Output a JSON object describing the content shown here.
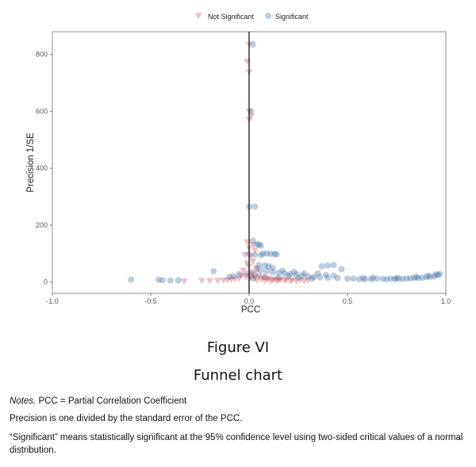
{
  "chart_data": {
    "type": "scatter",
    "xlabel": "PCC",
    "ylabel": "Precision 1/SE",
    "xlim": [
      -1.0,
      1.0
    ],
    "ylim": [
      -40,
      880
    ],
    "x_ticks": [
      "-1.0",
      "-0.5",
      "0.0",
      "0.5",
      "1.0"
    ],
    "x_tick_values": [
      -1.0,
      -0.5,
      0.0,
      0.5,
      1.0
    ],
    "y_ticks": [
      "0",
      "200",
      "400",
      "600",
      "800"
    ],
    "y_tick_values": [
      0,
      200,
      400,
      600,
      800
    ],
    "reference_line_x": 0.0,
    "grid": false,
    "legend_position": "top",
    "series": [
      {
        "name": "Not Significant",
        "marker": "triangle-down",
        "color": "#c0505e",
        "points": [
          [
            0.0,
            835
          ],
          [
            -0.01,
            775
          ],
          [
            0.0,
            738
          ],
          [
            0.0,
            600
          ],
          [
            0.01,
            583
          ],
          [
            0.0,
            570
          ],
          [
            -0.01,
            140
          ],
          [
            0.02,
            130
          ],
          [
            0.0,
            118
          ],
          [
            0.03,
            110
          ],
          [
            -0.02,
            95
          ],
          [
            0.01,
            90
          ],
          [
            0.02,
            72
          ],
          [
            -0.01,
            65
          ],
          [
            0.0,
            55
          ],
          [
            0.04,
            48
          ],
          [
            -0.03,
            40
          ],
          [
            0.01,
            35
          ],
          [
            0.02,
            28
          ],
          [
            0.0,
            22
          ],
          [
            0.05,
            20
          ],
          [
            -0.02,
            18
          ],
          [
            0.07,
            15
          ],
          [
            0.1,
            12
          ],
          [
            0.13,
            10
          ],
          [
            0.16,
            8
          ],
          [
            0.19,
            7
          ],
          [
            0.22,
            6
          ],
          [
            0.26,
            6
          ],
          [
            0.3,
            5
          ],
          [
            0.03,
            14
          ],
          [
            0.06,
            10
          ],
          [
            0.09,
            8
          ],
          [
            0.12,
            6
          ],
          [
            0.15,
            5
          ],
          [
            0.18,
            4
          ],
          [
            -0.05,
            12
          ],
          [
            -0.07,
            10
          ],
          [
            -0.09,
            8
          ],
          [
            -0.11,
            6
          ],
          [
            -0.13,
            5
          ],
          [
            -0.16,
            4
          ],
          [
            -0.2,
            3
          ],
          [
            -0.24,
            4
          ],
          [
            -0.33,
            2
          ],
          [
            0.04,
            6
          ],
          [
            0.08,
            4
          ],
          [
            0.11,
            3
          ],
          [
            0.14,
            3
          ],
          [
            0.21,
            3
          ],
          [
            0.24,
            2
          ],
          [
            0.28,
            3
          ],
          [
            -0.04,
            22
          ],
          [
            0.0,
            10
          ]
        ]
      },
      {
        "name": "Significant",
        "marker": "circle",
        "color": "#2f63a0",
        "points": [
          [
            0.02,
            835
          ],
          [
            0.01,
            600
          ],
          [
            0.0,
            265
          ],
          [
            0.03,
            265
          ],
          [
            0.02,
            145
          ],
          [
            0.04,
            132
          ],
          [
            0.05,
            132
          ],
          [
            0.06,
            128
          ],
          [
            0.07,
            100
          ],
          [
            0.09,
            100
          ],
          [
            0.11,
            99
          ],
          [
            0.13,
            98
          ],
          [
            0.14,
            97
          ],
          [
            0.0,
            98
          ],
          [
            0.03,
            96
          ],
          [
            0.06,
            94
          ],
          [
            0.05,
            60
          ],
          [
            0.08,
            58
          ],
          [
            0.1,
            55
          ],
          [
            0.12,
            50
          ],
          [
            0.04,
            45
          ],
          [
            0.06,
            40
          ],
          [
            0.09,
            38
          ],
          [
            0.12,
            35
          ],
          [
            0.15,
            32
          ],
          [
            0.18,
            30
          ],
          [
            0.21,
            28
          ],
          [
            0.24,
            26
          ],
          [
            0.27,
            22
          ],
          [
            0.3,
            20
          ],
          [
            0.33,
            18
          ],
          [
            0.36,
            16
          ],
          [
            0.4,
            15
          ],
          [
            0.45,
            14
          ],
          [
            0.5,
            12
          ],
          [
            0.53,
            12
          ],
          [
            0.56,
            10
          ],
          [
            0.59,
            10
          ],
          [
            0.62,
            10
          ],
          [
            0.65,
            12
          ],
          [
            0.68,
            11
          ],
          [
            0.7,
            10
          ],
          [
            0.72,
            12
          ],
          [
            0.74,
            10
          ],
          [
            0.76,
            12
          ],
          [
            0.78,
            11
          ],
          [
            0.8,
            12
          ],
          [
            0.82,
            13
          ],
          [
            0.84,
            14
          ],
          [
            0.86,
            14
          ],
          [
            0.88,
            15
          ],
          [
            0.9,
            17
          ],
          [
            0.92,
            18
          ],
          [
            0.94,
            20
          ],
          [
            0.96,
            24
          ],
          [
            0.97,
            28
          ],
          [
            0.37,
            55
          ],
          [
            0.4,
            58
          ],
          [
            0.43,
            60
          ],
          [
            0.47,
            45
          ],
          [
            0.35,
            30
          ],
          [
            0.39,
            25
          ],
          [
            0.43,
            22
          ],
          [
            0.32,
            12
          ],
          [
            0.2,
            22
          ],
          [
            0.25,
            15
          ],
          [
            0.15,
            15
          ],
          [
            0.08,
            18
          ],
          [
            0.03,
            25
          ],
          [
            0.01,
            20
          ],
          [
            0.02,
            12
          ],
          [
            -0.01,
            30
          ],
          [
            -0.05,
            28
          ],
          [
            -0.08,
            20
          ],
          [
            -0.1,
            18
          ],
          [
            -0.18,
            38
          ],
          [
            -0.6,
            8
          ],
          [
            -0.46,
            8
          ],
          [
            -0.44,
            6
          ],
          [
            -0.4,
            5
          ],
          [
            -0.36,
            6
          ],
          [
            0.58,
            14
          ],
          [
            0.63,
            15
          ],
          [
            0.75,
            14
          ],
          [
            0.85,
            18
          ],
          [
            0.91,
            22
          ],
          [
            0.95,
            27
          ],
          [
            0.17,
            40
          ],
          [
            0.23,
            35
          ],
          [
            0.28,
            30
          ]
        ]
      }
    ]
  },
  "figure": {
    "number": "Figure VI",
    "caption": "Funnel chart"
  },
  "notes": {
    "line1_label": "Notes.",
    "line1_text": " PCC = Partial Correlation Coefficient",
    "line2": "Precision is one divided by the standard error of the PCC.",
    "line3": "“Significant” means statistically significant at the 95% confidence level using two-sided critical values of a normal distribution."
  },
  "colors": {
    "not_significant": "#c0505e",
    "significant": "#2f63a0",
    "panel_border": "#8c8c8c",
    "reference_line": "#222222"
  }
}
